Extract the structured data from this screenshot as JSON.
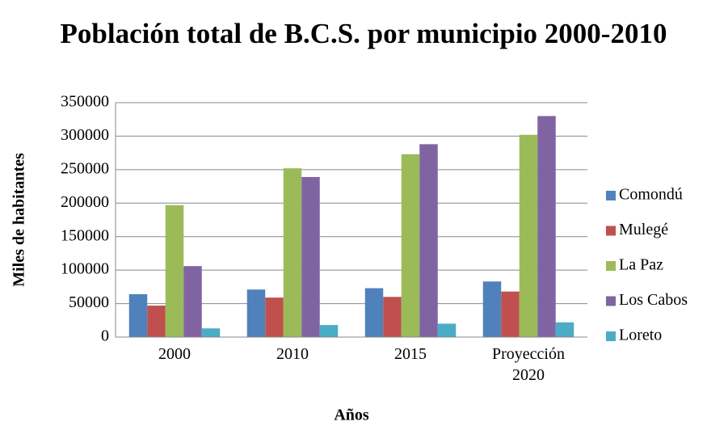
{
  "chart_data": {
    "type": "bar",
    "title": "Población total de B.C.S. por municipio 2000-2010",
    "xlabel": "Años",
    "ylabel": "Miles de habitantes",
    "categories": [
      "2000",
      "2010",
      "2015",
      "Proyección 2020"
    ],
    "series": [
      {
        "name": "Comondú",
        "color": "#4f81bd",
        "values": [
          64000,
          71000,
          73000,
          83000
        ]
      },
      {
        "name": "Mulegé",
        "color": "#c0504d",
        "values": [
          47000,
          59000,
          60000,
          68000
        ]
      },
      {
        "name": "La Paz",
        "color": "#9bbb59",
        "values": [
          197000,
          252000,
          273000,
          302000
        ]
      },
      {
        "name": "Los Cabos",
        "color": "#8064a2",
        "values": [
          106000,
          239000,
          288000,
          330000
        ]
      },
      {
        "name": "Loreto",
        "color": "#4bacc6",
        "values": [
          13000,
          18000,
          20000,
          22000
        ]
      }
    ],
    "ylim": [
      0,
      350000
    ],
    "yticks": [
      0,
      50000,
      100000,
      150000,
      200000,
      250000,
      300000,
      350000
    ],
    "grid": true,
    "legend": "right"
  }
}
